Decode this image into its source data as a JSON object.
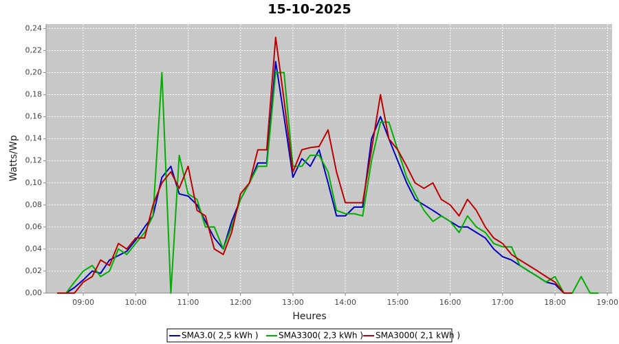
{
  "chart_data": {
    "type": "line",
    "title": "15-10-2025",
    "xlabel": "Heures",
    "ylabel": "Watts/Wp",
    "x": [
      8.5,
      8.67,
      8.83,
      9,
      9.17,
      9.33,
      9.5,
      9.67,
      9.83,
      10,
      10.17,
      10.33,
      10.5,
      10.67,
      10.83,
      11,
      11.17,
      11.33,
      11.5,
      11.67,
      11.83,
      12,
      12.17,
      12.33,
      12.5,
      12.67,
      12.83,
      13,
      13.17,
      13.33,
      13.5,
      13.67,
      13.83,
      14,
      14.17,
      14.33,
      14.5,
      14.67,
      14.83,
      15,
      15.17,
      15.33,
      15.5,
      15.67,
      15.83,
      16,
      16.17,
      16.33,
      16.5,
      16.67,
      16.83,
      17,
      17.17,
      17.33,
      17.5,
      17.67,
      17.83,
      18,
      18.17,
      18.33,
      18.5,
      18.67,
      18.83
    ],
    "series": [
      {
        "name": "SMA3.0( 2,5 kWh )",
        "color": "#0000bb",
        "values": [
          0,
          0,
          0.005,
          0.012,
          0.02,
          0.018,
          0.03,
          0.034,
          0.038,
          0.048,
          0.06,
          0.07,
          0.105,
          0.115,
          0.09,
          0.088,
          0.08,
          0.065,
          0.05,
          0.04,
          0.065,
          0.085,
          0.1,
          0.118,
          0.118,
          0.21,
          0.16,
          0.105,
          0.122,
          0.115,
          0.13,
          0.1,
          0.07,
          0.07,
          0.078,
          0.078,
          0.14,
          0.16,
          0.14,
          0.12,
          0.1,
          0.085,
          0.08,
          0.075,
          0.07,
          0.065,
          0.06,
          0.06,
          0.055,
          0.05,
          0.04,
          0.033,
          0.03,
          0.025,
          0.02,
          0.015,
          0.01,
          0.008,
          0,
          null,
          null,
          null,
          null
        ]
      },
      {
        "name": "SMA3300( 2,3 kWh )",
        "color": "#00b000",
        "values": [
          0,
          0,
          0.01,
          0.02,
          0.025,
          0.015,
          0.02,
          0.04,
          0.035,
          0.045,
          0.055,
          0.07,
          0.2,
          0,
          0.125,
          0.09,
          0.085,
          0.06,
          0.06,
          0.04,
          0.06,
          0.085,
          0.1,
          0.115,
          0.115,
          0.2,
          0.2,
          0.115,
          0.115,
          0.125,
          0.125,
          0.11,
          0.075,
          0.072,
          0.072,
          0.07,
          0.12,
          0.155,
          0.155,
          0.13,
          0.105,
          0.09,
          0.075,
          0.065,
          0.07,
          0.065,
          0.055,
          0.07,
          0.06,
          0.055,
          0.045,
          0.042,
          0.042,
          0.025,
          0.02,
          0.015,
          0.01,
          0.015,
          0,
          0,
          0.015,
          0,
          0
        ]
      },
      {
        "name": "SMA3000( 2,1 kWh )",
        "color": "#bb0000",
        "values": [
          0,
          0,
          0,
          0.01,
          0.015,
          0.03,
          0.025,
          0.045,
          0.04,
          0.05,
          0.05,
          0.08,
          0.1,
          0.11,
          0.095,
          0.115,
          0.075,
          0.07,
          0.04,
          0.035,
          0.055,
          0.09,
          0.1,
          0.13,
          0.13,
          0.232,
          0.175,
          0.11,
          0.13,
          0.132,
          0.133,
          0.148,
          0.11,
          0.082,
          0.082,
          0.082,
          0.13,
          0.18,
          0.14,
          0.13,
          0.115,
          0.1,
          0.095,
          0.1,
          0.085,
          0.08,
          0.07,
          0.085,
          0.075,
          0.06,
          0.05,
          0.045,
          0.035,
          0.03,
          0.025,
          0.02,
          0.015,
          0.01,
          0,
          0,
          null,
          null,
          null
        ]
      }
    ],
    "xlim": [
      8.29,
      19.09
    ],
    "xticks": [
      {
        "value": 9,
        "label": "09:00"
      },
      {
        "value": 10,
        "label": "10:00"
      },
      {
        "value": 11,
        "label": "11:00"
      },
      {
        "value": 12,
        "label": "12:00"
      },
      {
        "value": 13,
        "label": "13:00"
      },
      {
        "value": 14,
        "label": "14:00"
      },
      {
        "value": 15,
        "label": "15:00"
      },
      {
        "value": 16,
        "label": "16:00"
      },
      {
        "value": 17,
        "label": "17:00"
      },
      {
        "value": 18,
        "label": "18:00"
      },
      {
        "value": 19,
        "label": "19:00"
      }
    ],
    "ylim": [
      0,
      0.244
    ],
    "yticks": [
      {
        "value": 0,
        "label": "0,00"
      },
      {
        "value": 0.02,
        "label": "0,02"
      },
      {
        "value": 0.04,
        "label": "0,04"
      },
      {
        "value": 0.06,
        "label": "0,06"
      },
      {
        "value": 0.08,
        "label": "0,08"
      },
      {
        "value": 0.1,
        "label": "0,10"
      },
      {
        "value": 0.12,
        "label": "0,12"
      },
      {
        "value": 0.14,
        "label": "0,14"
      },
      {
        "value": 0.16,
        "label": "0,16"
      },
      {
        "value": 0.18,
        "label": "0,18"
      },
      {
        "value": 0.2,
        "label": "0,20"
      },
      {
        "value": 0.22,
        "label": "0,22"
      },
      {
        "value": 0.24,
        "label": "0,24"
      }
    ],
    "grid": true,
    "legend": "bottom"
  }
}
